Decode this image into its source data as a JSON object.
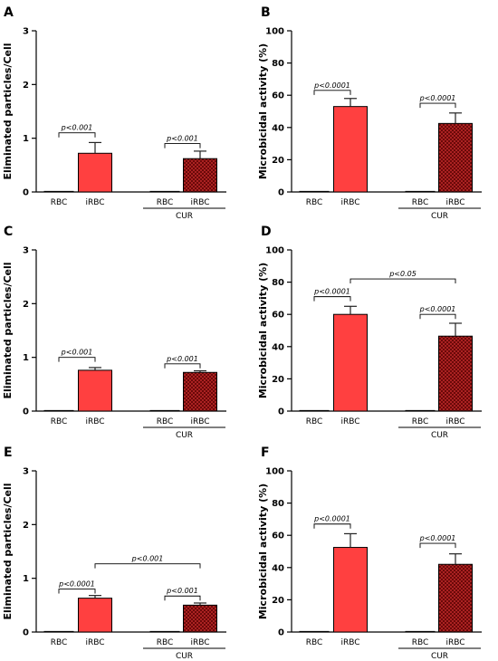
{
  "colors": {
    "solid_bar": "#ff4040",
    "hatched_bar": "#8b1010",
    "hatch_bg": "#d03030",
    "outline": "#000000"
  },
  "chart_data": [
    {
      "panel": "A",
      "type": "bar",
      "ylabel": "Eliminated particles/Cell",
      "ylim": [
        0,
        3
      ],
      "yticks": [
        0,
        1,
        2,
        3
      ],
      "categories": [
        "RBC",
        "iRBC",
        "RBC",
        "iRBC"
      ],
      "fills": [
        "solid",
        "solid",
        "hatched",
        "hatched"
      ],
      "values": [
        0,
        0.72,
        0,
        0.62
      ],
      "errors": [
        0,
        0.2,
        0,
        0.14
      ],
      "group_label": "CUR",
      "annotations": [
        {
          "from": 0,
          "to": 1,
          "y": 1.1,
          "text": "p<0.001"
        },
        {
          "from": 2,
          "to": 3,
          "y": 0.9,
          "text": "p<0.001"
        }
      ]
    },
    {
      "panel": "B",
      "type": "bar",
      "ylabel": "Microbicidal activity (%)",
      "ylim": [
        0,
        100
      ],
      "yticks": [
        0,
        20,
        40,
        60,
        80,
        100
      ],
      "categories": [
        "RBC",
        "iRBC",
        "RBC",
        "iRBC"
      ],
      "fills": [
        "solid",
        "solid",
        "hatched",
        "hatched"
      ],
      "values": [
        0,
        53,
        0,
        42.5
      ],
      "errors": [
        0,
        5,
        0,
        6.5
      ],
      "group_label": "CUR",
      "annotations": [
        {
          "from": 0,
          "to": 1,
          "y": 63,
          "text": "p<0.0001"
        },
        {
          "from": 2,
          "to": 3,
          "y": 55,
          "text": "p<0.0001"
        }
      ]
    },
    {
      "panel": "C",
      "type": "bar",
      "ylabel": "Eliminated particles/Cell",
      "ylim": [
        0,
        3
      ],
      "yticks": [
        0,
        1,
        2,
        3
      ],
      "categories": [
        "RBC",
        "iRBC",
        "RBC",
        "iRBC"
      ],
      "fills": [
        "solid",
        "solid",
        "hatched",
        "hatched"
      ],
      "values": [
        0,
        0.76,
        0,
        0.72
      ],
      "errors": [
        0,
        0.05,
        0,
        0.03
      ],
      "group_label": "CUR",
      "annotations": [
        {
          "from": 0,
          "to": 1,
          "y": 1.0,
          "text": "p<0.001"
        },
        {
          "from": 2,
          "to": 3,
          "y": 0.88,
          "text": "p<0.001"
        }
      ]
    },
    {
      "panel": "D",
      "type": "bar",
      "ylabel": "Microbicidal activity (%)",
      "ylim": [
        0,
        100
      ],
      "yticks": [
        0,
        20,
        40,
        60,
        80,
        100
      ],
      "categories": [
        "RBC",
        "iRBC",
        "RBC",
        "iRBC"
      ],
      "fills": [
        "solid",
        "solid",
        "hatched",
        "hatched"
      ],
      "values": [
        0,
        60,
        0,
        46.5
      ],
      "errors": [
        0,
        5,
        0,
        8
      ],
      "group_label": "CUR",
      "annotations": [
        {
          "from": 0,
          "to": 1,
          "y": 71,
          "text": "p<0.0001"
        },
        {
          "from": 1,
          "to": 3,
          "y": 82,
          "text": "p<0.05"
        },
        {
          "from": 2,
          "to": 3,
          "y": 60,
          "text": "p<0.0001"
        }
      ]
    },
    {
      "panel": "E",
      "type": "bar",
      "ylabel": "Eliminated particles/Cell",
      "ylim": [
        0,
        3
      ],
      "yticks": [
        0,
        1,
        2,
        3
      ],
      "categories": [
        "RBC",
        "iRBC",
        "RBC",
        "iRBC"
      ],
      "fills": [
        "solid",
        "solid",
        "hatched",
        "hatched"
      ],
      "values": [
        0,
        0.63,
        0,
        0.5
      ],
      "errors": [
        0,
        0.05,
        0,
        0.04
      ],
      "group_label": "CUR",
      "annotations": [
        {
          "from": 0,
          "to": 1,
          "y": 0.8,
          "text": "p<0.0001"
        },
        {
          "from": 1,
          "to": 3,
          "y": 1.27,
          "text": "p<0.001"
        },
        {
          "from": 2,
          "to": 3,
          "y": 0.67,
          "text": "p<0.001"
        }
      ]
    },
    {
      "panel": "F",
      "type": "bar",
      "ylabel": "Microbicidal activity (%)",
      "ylim": [
        0,
        100
      ],
      "yticks": [
        0,
        20,
        40,
        60,
        80,
        100
      ],
      "categories": [
        "RBC",
        "iRBC",
        "RBC",
        "iRBC"
      ],
      "fills": [
        "solid",
        "solid",
        "hatched",
        "hatched"
      ],
      "values": [
        0,
        52.5,
        0,
        42
      ],
      "errors": [
        0,
        8.5,
        0,
        6.5
      ],
      "group_label": "CUR",
      "annotations": [
        {
          "from": 0,
          "to": 1,
          "y": 67,
          "text": "p<0.0001"
        },
        {
          "from": 2,
          "to": 3,
          "y": 55,
          "text": "p<0.0001"
        }
      ]
    }
  ]
}
